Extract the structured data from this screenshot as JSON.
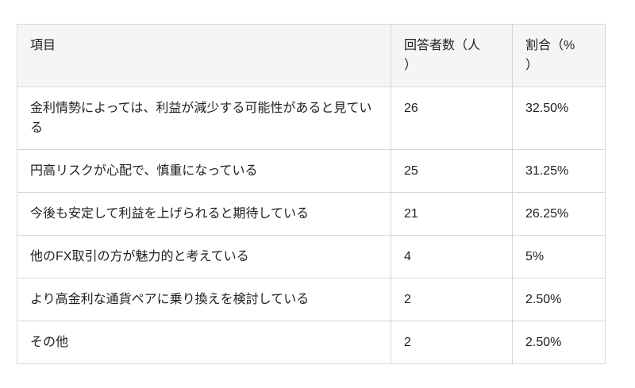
{
  "colors": {
    "header_background": "#f5f5f5",
    "border": "#d7d7d7",
    "text": "#1f1f1f",
    "page_background": "#ffffff"
  },
  "table": {
    "columns": [
      {
        "key": "item",
        "label": "項目"
      },
      {
        "key": "respondents",
        "label": "回答者数（人\n）"
      },
      {
        "key": "percentage",
        "label": "割合（%\n）"
      }
    ],
    "rows": [
      {
        "item": "金利情勢によっては、利益が減少する可能性があると見ている",
        "respondents": "26",
        "percentage": "32.50%"
      },
      {
        "item": "円高リスクが心配で、慎重になっている",
        "respondents": "25",
        "percentage": "31.25%"
      },
      {
        "item": "今後も安定して利益を上げられると期待している",
        "respondents": "21",
        "percentage": "26.25%"
      },
      {
        "item": "他のFX取引の方が魅力的と考えている",
        "respondents": "4",
        "percentage": "5%"
      },
      {
        "item": "より高金利な通貨ペアに乗り換えを検討している",
        "respondents": "2",
        "percentage": "2.50%"
      },
      {
        "item": "その他",
        "respondents": "2",
        "percentage": "2.50%"
      }
    ]
  }
}
